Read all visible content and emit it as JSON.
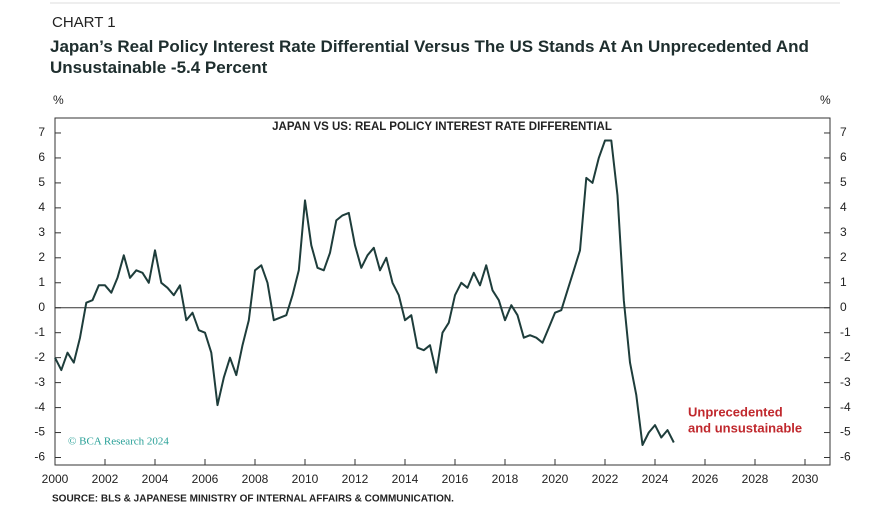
{
  "chart_data": {
    "type": "line",
    "label": "CHART 1",
    "title": "Japan’s Real Policy Interest Rate Differential Versus The US Stands At An Unprecedented And Unsustainable -5.4 Percent",
    "subtitle": "JAPAN VS US: REAL POLICY INTEREST RATE DIFFERENTIAL",
    "y_unit": "%",
    "annotation": [
      "Unprecedented",
      "and unsustainable"
    ],
    "credit": "© BCΑ Research 2024",
    "source": "SOURCE: BLS & JAPANESE MINISTRY OF INTERNAL AFFAIRS & COMMUNICATION.",
    "xlim": [
      2000,
      2031
    ],
    "xticks": [
      2000,
      2002,
      2004,
      2006,
      2008,
      2010,
      2012,
      2014,
      2016,
      2018,
      2020,
      2022,
      2024,
      2026,
      2028,
      2030
    ],
    "ylim": [
      -6.3,
      7.6
    ],
    "yticks": [
      -6,
      -5,
      -4,
      -3,
      -2,
      -1,
      0,
      1,
      2,
      3,
      4,
      5,
      6,
      7
    ],
    "color": "#1e3d3b",
    "x": [
      2000,
      2000.25,
      2000.5,
      2000.75,
      2001,
      2001.25,
      2001.5,
      2001.75,
      2002,
      2002.25,
      2002.5,
      2002.75,
      2003,
      2003.25,
      2003.5,
      2003.75,
      2004,
      2004.25,
      2004.5,
      2004.75,
      2005,
      2005.25,
      2005.5,
      2005.75,
      2006,
      2006.25,
      2006.5,
      2006.75,
      2007,
      2007.25,
      2007.5,
      2007.75,
      2008,
      2008.25,
      2008.5,
      2008.75,
      2009,
      2009.25,
      2009.5,
      2009.75,
      2010,
      2010.25,
      2010.5,
      2010.75,
      2011,
      2011.25,
      2011.5,
      2011.75,
      2012,
      2012.25,
      2012.5,
      2012.75,
      2013,
      2013.25,
      2013.5,
      2013.75,
      2014,
      2014.25,
      2014.5,
      2014.75,
      2015,
      2015.25,
      2015.5,
      2015.75,
      2016,
      2016.25,
      2016.5,
      2016.75,
      2017,
      2017.25,
      2017.5,
      2017.75,
      2018,
      2018.25,
      2018.5,
      2018.75,
      2019,
      2019.25,
      2019.5,
      2019.75,
      2020,
      2020.25,
      2020.5,
      2020.75,
      2021,
      2021.25,
      2021.5,
      2021.75,
      2022,
      2022.25,
      2022.5,
      2022.75,
      2023,
      2023.25,
      2023.5,
      2023.75,
      2024,
      2024.25,
      2024.5,
      2024.75
    ],
    "values": [
      -2,
      -2.5,
      -1.8,
      -2.2,
      -1.2,
      0.2,
      0.3,
      0.9,
      0.9,
      0.6,
      1.2,
      2.1,
      1.2,
      1.5,
      1.4,
      1.0,
      2.3,
      1.0,
      0.8,
      0.5,
      0.9,
      -0.5,
      -0.2,
      -0.9,
      -1.0,
      -1.8,
      -3.9,
      -2.8,
      -2.0,
      -2.7,
      -1.5,
      -0.5,
      1.5,
      1.7,
      1.0,
      -0.5,
      -0.4,
      -0.3,
      0.5,
      1.5,
      4.3,
      2.5,
      1.6,
      1.5,
      2.2,
      3.5,
      3.7,
      3.8,
      2.5,
      1.6,
      2.1,
      2.4,
      1.5,
      2.0,
      1.0,
      0.5,
      -0.5,
      -0.3,
      -1.6,
      -1.7,
      -1.5,
      -2.6,
      -1.0,
      -0.6,
      0.5,
      1.0,
      0.8,
      1.4,
      0.9,
      1.7,
      0.7,
      0.3,
      -0.5,
      0.1,
      -0.3,
      -1.2,
      -1.1,
      -1.2,
      -1.4,
      -0.8,
      -0.2,
      -0.1,
      0.7,
      1.5,
      2.3,
      5.2,
      5.0,
      6.0,
      6.7,
      6.7,
      4.5,
      0.3,
      -2.2,
      -3.5,
      -5.5,
      -5.0,
      -4.7,
      -5.2,
      -4.9,
      -5.4
    ]
  }
}
